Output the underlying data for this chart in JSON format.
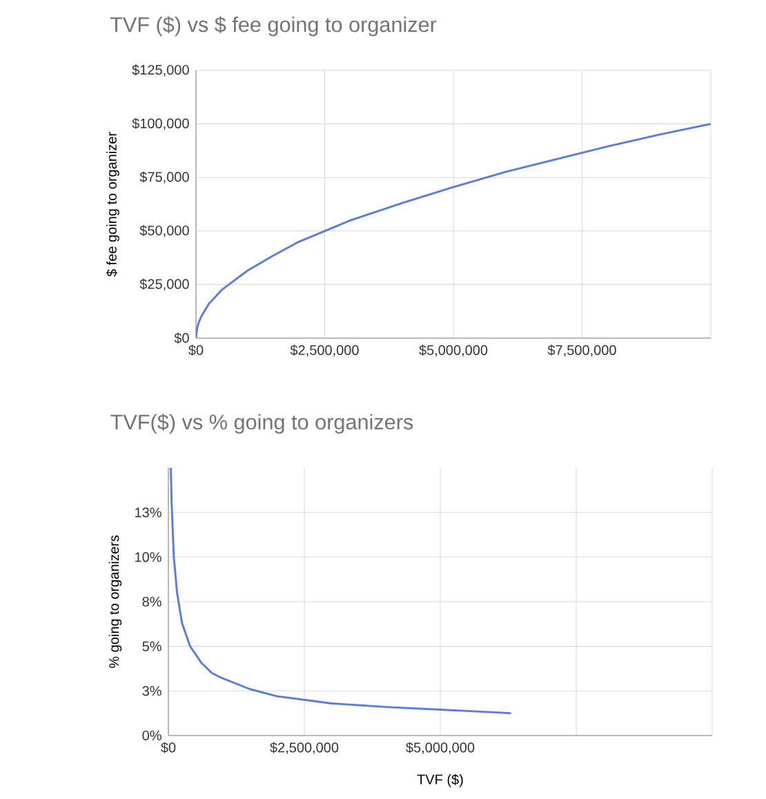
{
  "chart_data": [
    {
      "type": "line",
      "title": "TVF ($) vs $ fee going to organizer",
      "ylabel": "$ fee going to organizer",
      "x": [
        0,
        20000,
        50000,
        100000,
        250000,
        500000,
        1000000,
        1500000,
        2000000,
        2500000,
        3000000,
        4000000,
        5000000,
        6000000,
        7000000,
        8000000,
        9000000,
        10000000
      ],
      "series": [
        {
          "color": "#5b7be0",
          "values": [
            0,
            4500,
            7000,
            10000,
            16000,
            22500,
            31500,
            38500,
            45000,
            50000,
            55000,
            63000,
            70500,
            77500,
            83500,
            89500,
            95000,
            100000
          ]
        }
      ],
      "xlim": [
        0,
        10000000
      ],
      "ylim": [
        0,
        125000
      ],
      "xticks": [
        {
          "value": 0,
          "label": "$0"
        },
        {
          "value": 2500000,
          "label": "$2,500,000"
        },
        {
          "value": 5000000,
          "label": "$5,000,000"
        },
        {
          "value": 7500000,
          "label": "$7,500,000"
        },
        {
          "value": 10000000,
          "label": null
        }
      ],
      "yticks": [
        {
          "value": 0,
          "label": "$0"
        },
        {
          "value": 25000,
          "label": "$25,000"
        },
        {
          "value": 50000,
          "label": "$50,000"
        },
        {
          "value": 75000,
          "label": "$75,000"
        },
        {
          "value": 100000,
          "label": "$100,000"
        },
        {
          "value": 125000,
          "label": "$125,000"
        }
      ],
      "grid": true,
      "marker": "none",
      "line_style": "solid"
    },
    {
      "type": "line",
      "title": "TVF($) vs % going to organizers",
      "xlabel": "TVF ($)",
      "ylabel": "% going to organizers",
      "x": [
        45000,
        60000,
        100000,
        160000,
        250000,
        400000,
        600000,
        800000,
        1000000,
        1500000,
        2000000,
        2500000,
        3000000,
        4000000,
        5000000,
        6000000,
        6300000
      ],
      "series": [
        {
          "color": "#5b7be0",
          "values": [
            15,
            13,
            10,
            8,
            6.3,
            5,
            4.1,
            3.5,
            3.2,
            2.6,
            2.2,
            2.0,
            1.8,
            1.6,
            1.45,
            1.3,
            1.25
          ]
        }
      ],
      "xlim": [
        0,
        10000000
      ],
      "ylim": [
        0,
        15
      ],
      "xticks": [
        {
          "value": 0,
          "label": "$0"
        },
        {
          "value": 2500000,
          "label": "$2,500,000"
        },
        {
          "value": 5000000,
          "label": "$5,000,000"
        },
        {
          "value": 7500000,
          "label": null
        },
        {
          "value": 10000000,
          "label": null
        }
      ],
      "yticks": [
        {
          "value": 0,
          "label": "0%"
        },
        {
          "value": 2.5,
          "label": "3%"
        },
        {
          "value": 5,
          "label": "5%"
        },
        {
          "value": 7.5,
          "label": "8%"
        },
        {
          "value": 10,
          "label": "10%"
        },
        {
          "value": 12.5,
          "label": "13%"
        }
      ],
      "grid": true,
      "marker": "none",
      "line_style": "solid"
    }
  ]
}
